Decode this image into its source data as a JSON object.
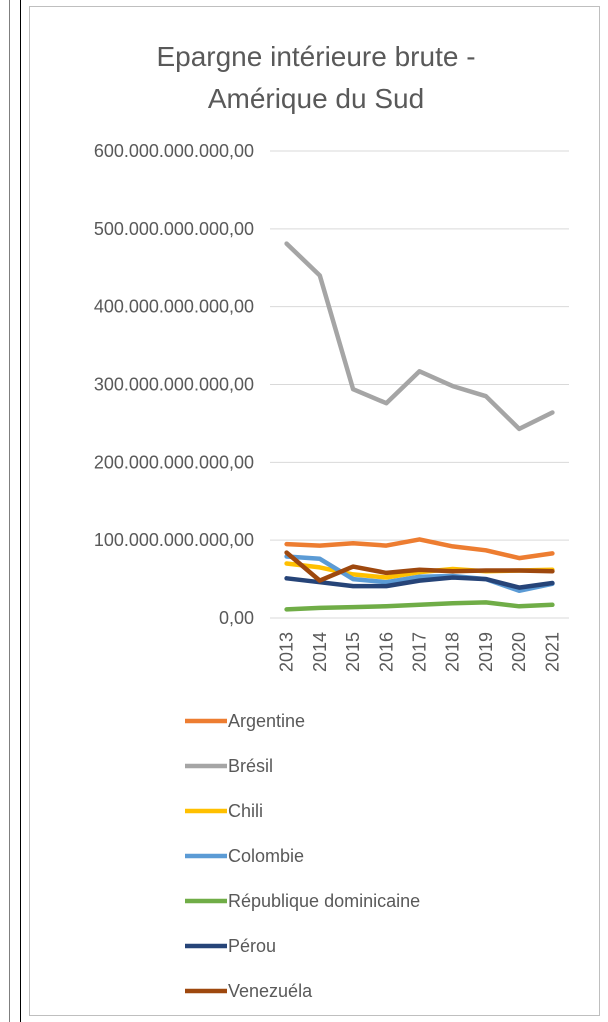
{
  "chart_data": {
    "type": "line",
    "title_lines": [
      "Epargne intérieure brute -",
      "Amérique du Sud"
    ],
    "ylim": [
      0,
      600000000000
    ],
    "y_ticks": [
      0,
      100000000000,
      200000000000,
      300000000000,
      400000000000,
      500000000000,
      600000000000
    ],
    "y_tick_labels": [
      "0,00",
      "100.000.000.000,00",
      "200.000.000.000,00",
      "300.000.000.000,00",
      "400.000.000.000,00",
      "500.000.000.000,00",
      "600.000.000.000,00"
    ],
    "categories": [
      "2013",
      "2014",
      "2015",
      "2016",
      "2017",
      "2018",
      "2019",
      "2020",
      "2021"
    ],
    "grid": true,
    "legend_position": "bottom",
    "series": [
      {
        "name": "Argentine",
        "color": "#ed7d31",
        "values": [
          95000000000,
          93000000000,
          96000000000,
          93000000000,
          101000000000,
          92000000000,
          87000000000,
          77000000000,
          83000000000
        ]
      },
      {
        "name": "Brésil",
        "color": "#a5a5a5",
        "values": [
          481000000000,
          440000000000,
          294000000000,
          276000000000,
          317000000000,
          298000000000,
          285000000000,
          243000000000,
          264000000000
        ]
      },
      {
        "name": "Chili",
        "color": "#ffc000",
        "values": [
          70000000000,
          65000000000,
          56000000000,
          52000000000,
          59000000000,
          63000000000,
          60000000000,
          61000000000,
          62000000000
        ]
      },
      {
        "name": "Colombie",
        "color": "#5b9bd5",
        "values": [
          79000000000,
          76000000000,
          50000000000,
          46000000000,
          53000000000,
          54000000000,
          50000000000,
          35000000000,
          44000000000
        ]
      },
      {
        "name": "République dominicaine",
        "color": "#70ad47",
        "values": [
          11000000000,
          13000000000,
          14000000000,
          15000000000,
          17000000000,
          19000000000,
          20000000000,
          15000000000,
          17000000000
        ]
      },
      {
        "name": "Pérou",
        "color": "#264478",
        "values": [
          51000000000,
          46000000000,
          41000000000,
          41000000000,
          48000000000,
          52000000000,
          50000000000,
          39000000000,
          45000000000
        ]
      },
      {
        "name": "Venezuéla",
        "color": "#9e480e",
        "values": [
          84000000000,
          48000000000,
          66000000000,
          58000000000,
          62000000000,
          60000000000,
          61000000000,
          61000000000,
          60000000000
        ]
      }
    ]
  }
}
